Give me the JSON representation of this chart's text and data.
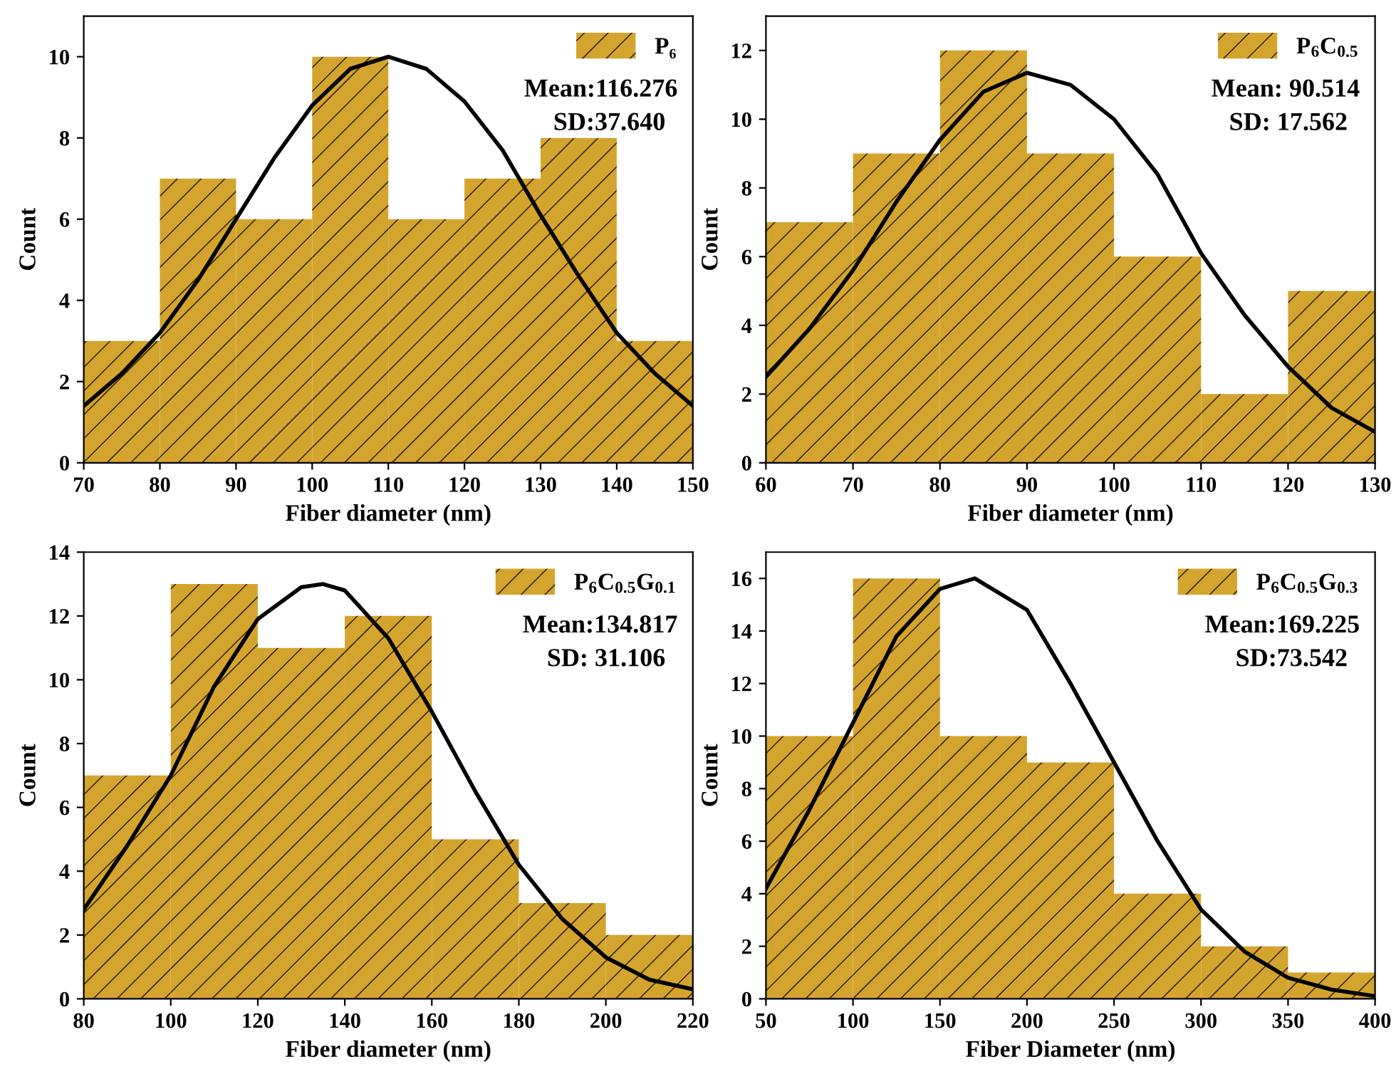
{
  "chart_data": [
    {
      "type": "histogram",
      "xlabel": "Fiber diameter (nm)",
      "ylabel": "Count",
      "xlim": [
        70,
        150
      ],
      "ylim": [
        0,
        11
      ],
      "xticks": [
        70,
        80,
        90,
        100,
        110,
        120,
        130,
        140,
        150
      ],
      "yticks": [
        0,
        2,
        4,
        6,
        8,
        10
      ],
      "legend": "top right",
      "annotations": [
        "Mean:116.276",
        "SD:37.640"
      ],
      "series": [
        {
          "name": "P₆",
          "color": "#d4a52e",
          "bins": [
            70,
            80,
            90,
            100,
            110,
            120,
            130,
            140,
            150
          ],
          "values": [
            3,
            7,
            6,
            10,
            6,
            7,
            8,
            3
          ]
        },
        {
          "type": "line",
          "color": "#000000",
          "x": [
            70,
            75,
            80,
            85,
            90,
            95,
            100,
            105,
            110,
            115,
            120,
            125,
            130,
            135,
            140,
            145,
            150
          ],
          "values": [
            1.4,
            2.2,
            3.2,
            4.5,
            6.0,
            7.5,
            8.8,
            9.7,
            10.0,
            9.7,
            8.9,
            7.7,
            6.1,
            4.6,
            3.2,
            2.2,
            1.4
          ]
        }
      ]
    },
    {
      "type": "histogram",
      "xlabel": "Fiber diameter (nm)",
      "ylabel": "Count",
      "xlim": [
        60,
        130
      ],
      "ylim": [
        0,
        13
      ],
      "xticks": [
        60,
        70,
        80,
        90,
        100,
        110,
        120,
        130
      ],
      "yticks": [
        0,
        2,
        4,
        6,
        8,
        10,
        12
      ],
      "legend": "top right",
      "annotations": [
        "Mean: 90.514",
        "SD: 17.562"
      ],
      "series": [
        {
          "name": "P$_{6}$C$_{0.5}$",
          "color": "#d4a52e",
          "bins": [
            60,
            70,
            80,
            90,
            100,
            110,
            120,
            130
          ],
          "values": [
            7,
            9,
            12,
            9,
            6,
            2,
            5
          ]
        },
        {
          "type": "line",
          "color": "#000000",
          "x": [
            60,
            65,
            70,
            75,
            80,
            85,
            90,
            95,
            100,
            105,
            110,
            115,
            120,
            125,
            130
          ],
          "values": [
            2.5,
            3.9,
            5.6,
            7.6,
            9.4,
            10.8,
            11.35,
            11.0,
            10.0,
            8.4,
            6.1,
            4.3,
            2.8,
            1.6,
            0.9
          ]
        }
      ]
    },
    {
      "type": "histogram",
      "xlabel": "Fiber diameter (nm)",
      "ylabel": "Count",
      "xlim": [
        80,
        220
      ],
      "ylim": [
        0,
        14
      ],
      "xticks": [
        80,
        100,
        120,
        140,
        160,
        180,
        200,
        220
      ],
      "yticks": [
        0,
        2,
        4,
        6,
        8,
        10,
        12,
        14
      ],
      "legend": "top right",
      "annotations": [
        "Mean:134.817",
        "SD: 31.106"
      ],
      "series": [
        {
          "name": "P$_{6}$C$_{0.5}$G$_{0.1}$",
          "color": "#d4a52e",
          "bins": [
            80,
            100,
            120,
            140,
            160,
            180,
            200,
            220
          ],
          "values": [
            7,
            13,
            11,
            12,
            5,
            3,
            2
          ]
        },
        {
          "type": "line",
          "color": "#000000",
          "x": [
            80,
            90,
            100,
            110,
            120,
            130,
            135,
            140,
            150,
            160,
            170,
            180,
            190,
            200,
            210,
            220
          ],
          "values": [
            2.8,
            4.8,
            7.0,
            9.8,
            11.9,
            12.9,
            13.0,
            12.8,
            11.3,
            9.0,
            6.5,
            4.2,
            2.5,
            1.3,
            0.6,
            0.3
          ]
        }
      ]
    },
    {
      "type": "histogram",
      "xlabel": "Fiber Diameter (nm)",
      "ylabel": "Count",
      "xlim": [
        50,
        400
      ],
      "ylim": [
        0,
        17
      ],
      "xticks": [
        50,
        100,
        150,
        200,
        250,
        300,
        350,
        400
      ],
      "yticks": [
        0,
        2,
        4,
        6,
        8,
        10,
        12,
        14,
        16
      ],
      "legend": "top right",
      "annotations": [
        "Mean:169.225",
        "SD:73.542"
      ],
      "series": [
        {
          "name": "P$_{6}$C$_{0.5}$G$_{0.3}$",
          "color": "#d4a52e",
          "bins": [
            50,
            100,
            150,
            200,
            250,
            300,
            350,
            400
          ],
          "values": [
            10,
            16,
            10,
            9,
            4,
            2,
            1
          ]
        },
        {
          "type": "line",
          "color": "#000000",
          "x": [
            50,
            75,
            100,
            125,
            150,
            170,
            200,
            225,
            250,
            275,
            300,
            325,
            350,
            375,
            400
          ],
          "values": [
            4.2,
            7.2,
            10.5,
            13.8,
            15.6,
            16.0,
            14.8,
            12.0,
            9.0,
            6.0,
            3.4,
            1.8,
            0.8,
            0.35,
            0.1
          ]
        }
      ]
    }
  ]
}
